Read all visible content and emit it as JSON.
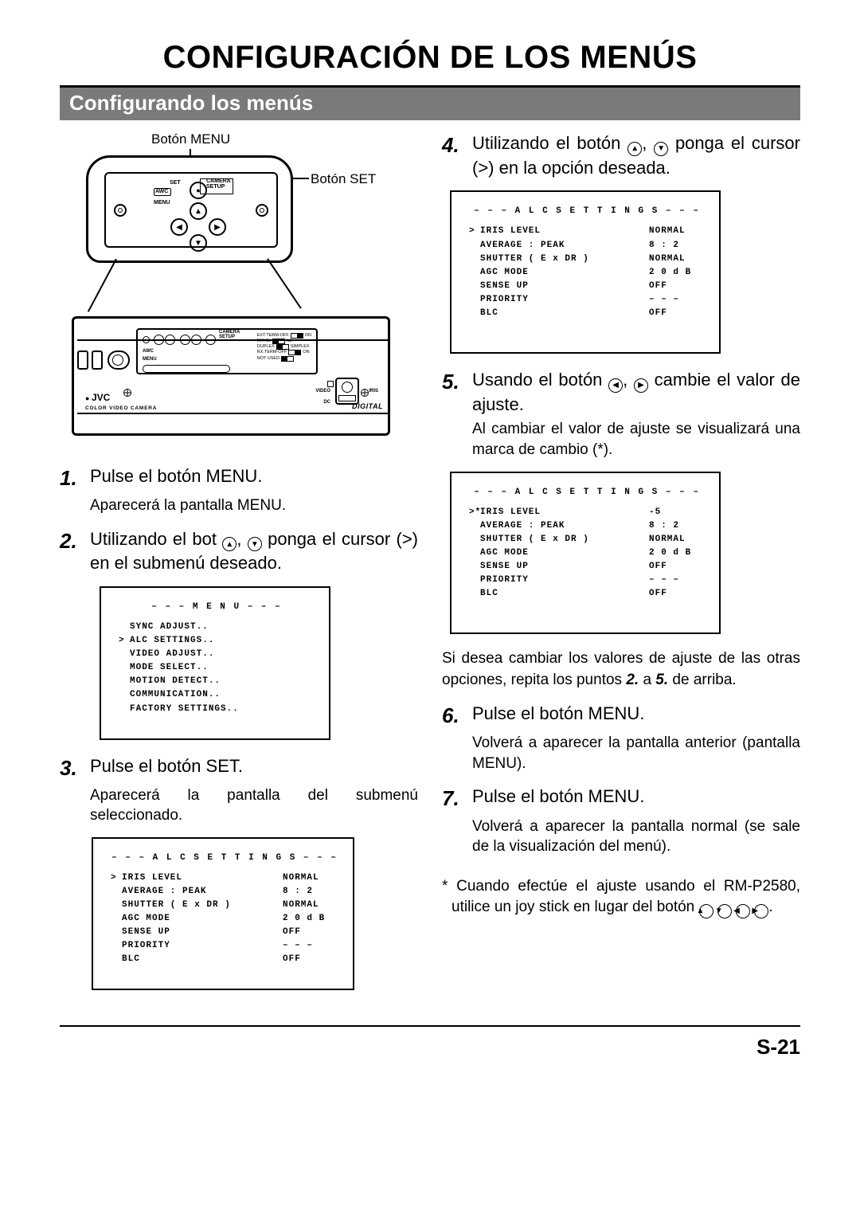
{
  "page": {
    "title": "CONFIGURACIÓN DE LOS MENÚS",
    "section": "Configurando los menús",
    "number": "S-21"
  },
  "diagram": {
    "label_menu": "Botón MENU",
    "label_set": "Botón SET",
    "panel": {
      "set": "SET",
      "awc": "AWC",
      "menu": "MENU",
      "camera_setup": "CAMERA\nSETUP"
    },
    "camera": {
      "brand": "JVC",
      "subtitle": "COLOR VIDEO CAMERA",
      "digital": "DIGITAL",
      "switches": {
        "r1": {
          "left": "EXT.TERM-OFF",
          "right": "ON"
        },
        "r2": {
          "left": "INT/GL",
          "right": "LL"
        },
        "r3": {
          "left": "DUPLEX",
          "right": "SIMPLEX"
        },
        "r4": {
          "left": "RX.TERM-OFF",
          "right": "ON"
        },
        "r5": {
          "left": "NOT USED",
          "right": ""
        }
      },
      "video": "VIDEO",
      "dc": "DC",
      "iris": "IRIS",
      "camera_setup": "CAMERA\nSETUP",
      "awc": "AWC",
      "menu": "MENU"
    }
  },
  "steps": {
    "s1": {
      "n": "1.",
      "t": "Pulse el botón MENU.",
      "sub": "Aparecerá la pantalla MENU."
    },
    "s2": {
      "n": "2.",
      "t_a": "Utilizando el bot ",
      "t_b": ", ",
      "t_c": " ponga el cursor (>) en el submenú deseado."
    },
    "s3": {
      "n": "3.",
      "t": "Pulse el botón SET.",
      "sub": "Aparecerá la pantalla del submenú seleccionado."
    },
    "s4": {
      "n": "4.",
      "t_a": "Utilizando el botón ",
      "t_b": ", ",
      "t_c": " ponga el cursor (>) en la opción deseada."
    },
    "s5": {
      "n": "5.",
      "t_a": "Usando el botón ",
      "t_b": ", ",
      "t_c": " cambie el valor de ajuste.",
      "sub": "Al cambiar el valor de ajuste se visualizará una marca de cambio (*)."
    },
    "s5b": {
      "a": "Si desea cambiar los valores de ajuste de las otras opciones, repita los puntos ",
      "b": "2.",
      "c": " a ",
      "d": "5.",
      "e": " de arriba."
    },
    "s6": {
      "n": "6.",
      "t": "Pulse el botón MENU.",
      "sub": "Volverá a aparecer la pantalla anterior (pantalla MENU)."
    },
    "s7": {
      "n": "7.",
      "t": "Pulse el botón MENU.",
      "sub": "Volverá a aparecer la pantalla normal (se sale de la visualización del menú)."
    },
    "note": {
      "a": "* Cuando efectúe el ajuste usando el RM-P2580, utilice un joy stick en lugar del botón ",
      "end": "."
    }
  },
  "screens": {
    "menu": {
      "title": "– – –   M E N U   – – –",
      "rows": [
        {
          "cur": "",
          "key": "SYNC ADJUST.."
        },
        {
          "cur": ">",
          "key": "ALC SETTINGS.."
        },
        {
          "cur": "",
          "key": "VIDEO ADJUST.."
        },
        {
          "cur": "",
          "key": "MODE SELECT.."
        },
        {
          "cur": "",
          "key": "MOTION DETECT.."
        },
        {
          "cur": "",
          "key": "COMMUNICATION.."
        },
        {
          "cur": "",
          "key": "FACTORY SETTINGS.."
        }
      ]
    },
    "alc1": {
      "title": "– – –   A L C   S E T T I N G S   – – –",
      "rows": [
        {
          "cur": ">",
          "key": "IRIS LEVEL",
          "val": "NORMAL"
        },
        {
          "cur": "",
          "key": "AVERAGE : PEAK",
          "val": "8 : 2"
        },
        {
          "cur": "",
          "key": "SHUTTER ( E x DR )",
          "val": "NORMAL"
        },
        {
          "cur": "",
          "key": "AGC  MODE",
          "val": "2 0 d B"
        },
        {
          "cur": "",
          "key": "SENSE  UP",
          "val": "OFF"
        },
        {
          "cur": "",
          "key": "PRIORITY",
          "val": "– – –"
        },
        {
          "cur": "",
          "key": "BLC",
          "val": "OFF"
        }
      ]
    },
    "alc2": {
      "title": "– – –   A L C   S E T T I N G S   – – –",
      "rows": [
        {
          "cur": ">",
          "key": "IRIS LEVEL",
          "val": "NORMAL"
        },
        {
          "cur": "",
          "key": "AVERAGE : PEAK",
          "val": "8 : 2"
        },
        {
          "cur": "",
          "key": "SHUTTER ( E x DR )",
          "val": "NORMAL"
        },
        {
          "cur": "",
          "key": "AGC  MODE",
          "val": "2 0 d B"
        },
        {
          "cur": "",
          "key": "SENSE  UP",
          "val": "OFF"
        },
        {
          "cur": "",
          "key": "PRIORITY",
          "val": "– – –"
        },
        {
          "cur": "",
          "key": "BLC",
          "val": "OFF"
        }
      ]
    },
    "alc3": {
      "title": "– – –   A L C   S E T T I N G S   – – –",
      "rows": [
        {
          "cur": ">*",
          "key": "IRIS LEVEL",
          "val": "-5"
        },
        {
          "cur": "",
          "key": "AVERAGE : PEAK",
          "val": "8 : 2"
        },
        {
          "cur": "",
          "key": "SHUTTER ( E x DR )",
          "val": "NORMAL"
        },
        {
          "cur": "",
          "key": "AGC  MODE",
          "val": "2 0 d B"
        },
        {
          "cur": "",
          "key": "SENSE  UP",
          "val": "OFF"
        },
        {
          "cur": "",
          "key": "PRIORITY",
          "val": "– – –"
        },
        {
          "cur": "",
          "key": "BLC",
          "val": "OFF"
        }
      ]
    }
  },
  "icons": {
    "up": "▲",
    "down": "▼",
    "left": "◀",
    "right": "▶"
  }
}
